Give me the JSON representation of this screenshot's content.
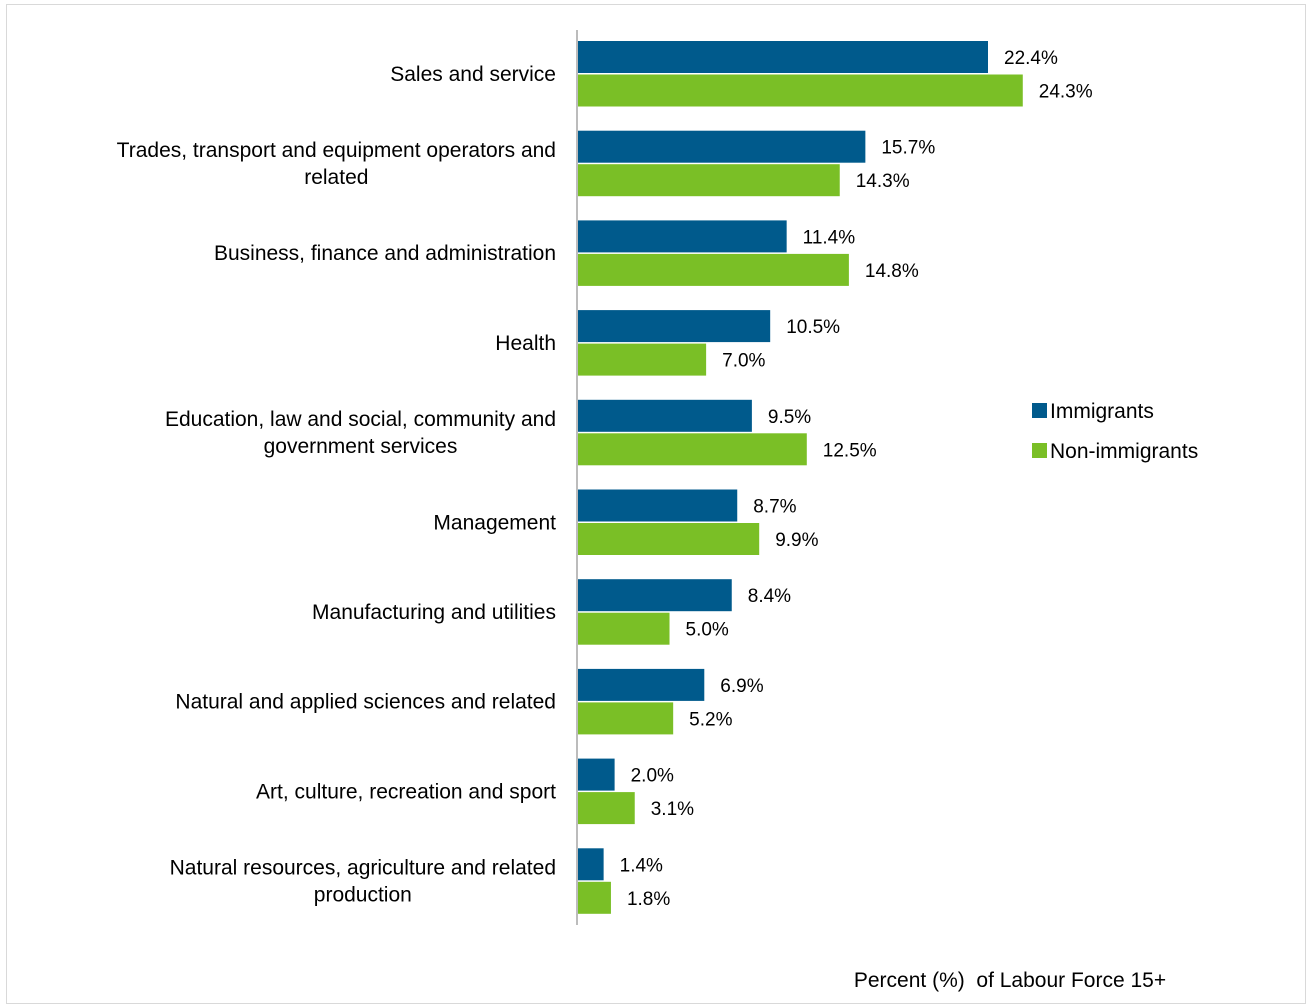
{
  "chart_data": {
    "type": "bar",
    "orientation": "horizontal",
    "categories": [
      "Sales and service",
      "Trades, transport and equipment operators and related",
      "Business, finance and administration",
      "Health",
      "Education, law and social, community and government services",
      "Management",
      "Manufacturing and utilities",
      "Natural and applied sciences and related",
      "Art, culture, recreation and sport",
      "Natural resources, agriculture and related production"
    ],
    "category_lines": [
      [
        "Sales and service"
      ],
      [
        "Trades, transport and equipment operators and",
        "related"
      ],
      [
        "Business, finance and administration"
      ],
      [
        "Health"
      ],
      [
        "Education, law and social, community and",
        "government services"
      ],
      [
        "Management"
      ],
      [
        "Manufacturing and utilities"
      ],
      [
        "Natural and applied sciences and related"
      ],
      [
        "Art, culture, recreation and sport"
      ],
      [
        "Natural resources, agriculture and related",
        "production"
      ]
    ],
    "series": [
      {
        "name": "Immigrants",
        "color": "#005a8c",
        "values": [
          22.4,
          15.7,
          11.4,
          10.5,
          9.5,
          8.7,
          8.4,
          6.9,
          2.0,
          1.4
        ],
        "labels": [
          "22.4%",
          "15.7%",
          "11.4%",
          "10.5%",
          "9.5%",
          "8.7%",
          "8.4%",
          "6.9%",
          "2.0%",
          "1.4%"
        ]
      },
      {
        "name": "Non-immigrants",
        "color": "#7abf26",
        "values": [
          24.3,
          14.3,
          14.8,
          7.0,
          12.5,
          9.9,
          5.0,
          5.2,
          3.1,
          1.8
        ],
        "labels": [
          "24.3%",
          "14.3%",
          "14.8%",
          "7.0%",
          "12.5%",
          "9.9%",
          "5.0%",
          "5.2%",
          "3.1%",
          "1.8%"
        ]
      }
    ],
    "xlabel": "Percent (%)  of Labour Force 15+",
    "xlim": [
      0,
      30
    ],
    "grid": false,
    "legend_position": "right"
  }
}
